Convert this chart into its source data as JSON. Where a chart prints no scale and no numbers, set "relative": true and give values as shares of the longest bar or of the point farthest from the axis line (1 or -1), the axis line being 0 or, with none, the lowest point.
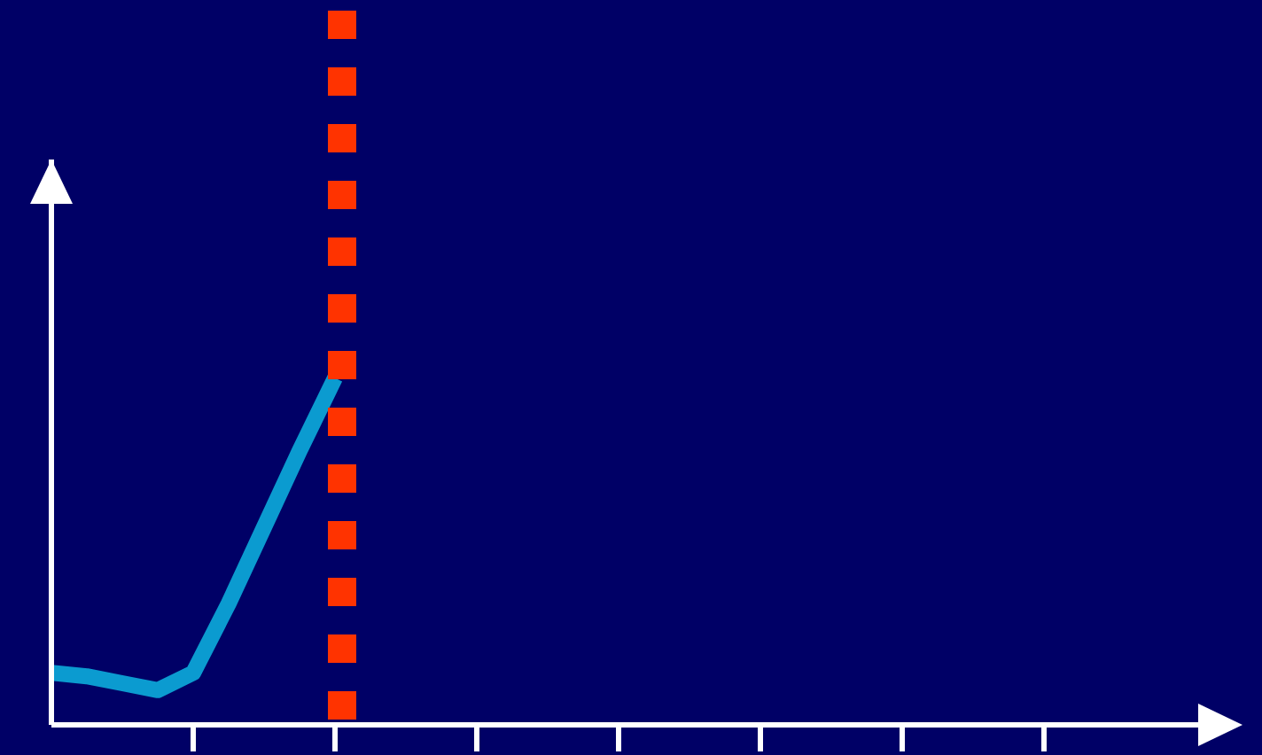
{
  "chart_data": {
    "type": "line",
    "relative": true,
    "categories": [
      null,
      null,
      null,
      null,
      null,
      null,
      null,
      null,
      null,
      null,
      null,
      null,
      null,
      null,
      null,
      null,
      null,
      null,
      null,
      null,
      null,
      null,
      null,
      null,
      null,
      null,
      null,
      null,
      null,
      null,
      null,
      null,
      null,
      null
    ],
    "grid": false,
    "marker": "none",
    "line_style": "solid",
    "series": [
      {
        "color": "#0b9bd0",
        "values": [
          0.15,
          0.14,
          0.12,
          0.1,
          0.15,
          0.35,
          0.57,
          0.79,
          1,
          null,
          null,
          null,
          null,
          null,
          null,
          null,
          null,
          null,
          null,
          null,
          null,
          null,
          null,
          null,
          null,
          null,
          null,
          null,
          null,
          null,
          null,
          null,
          null,
          null
        ]
      }
    ]
  }
}
